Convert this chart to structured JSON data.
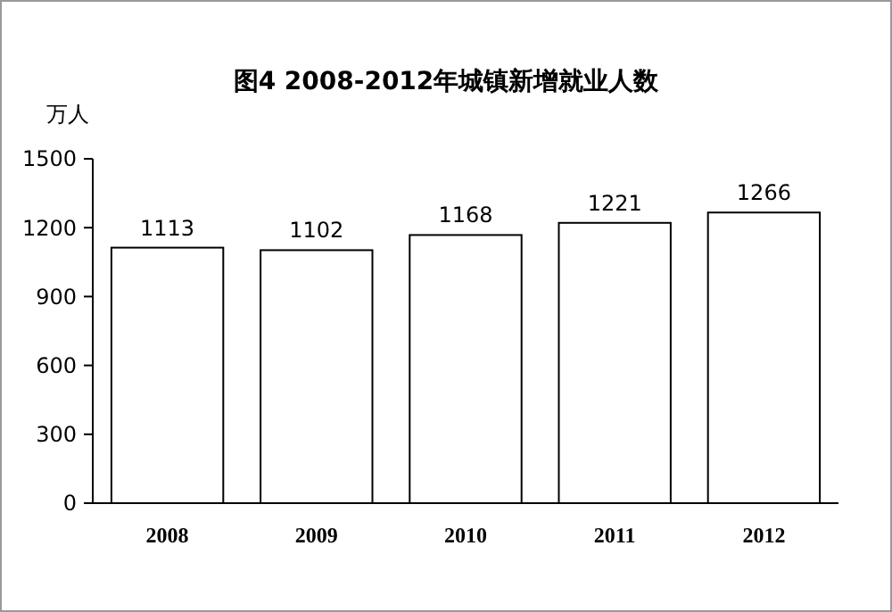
{
  "chart_data": {
    "type": "bar",
    "title": "图4  2008-2012年城镇新增就业人数",
    "ylabel": "万人",
    "categories": [
      "2008",
      "2009",
      "2010",
      "2011",
      "2012"
    ],
    "values": [
      1113,
      1102,
      1168,
      1221,
      1266
    ],
    "color": "#ffffff",
    "ylim": [
      0,
      1500
    ],
    "yticks": [
      0,
      300,
      600,
      900,
      1200,
      1500
    ],
    "data_labels": true,
    "grid": false
  }
}
